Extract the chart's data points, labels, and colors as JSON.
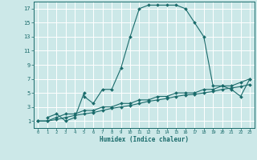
{
  "background_color": "#cce8e8",
  "grid_color": "#ffffff",
  "line_color": "#1a6b6b",
  "xlabel": "Humidex (Indice chaleur)",
  "xlim": [
    -0.5,
    23.5
  ],
  "ylim": [
    0,
    18
  ],
  "xticks": [
    0,
    1,
    2,
    3,
    4,
    5,
    6,
    7,
    8,
    9,
    10,
    11,
    12,
    13,
    14,
    15,
    16,
    17,
    18,
    19,
    20,
    21,
    22,
    23
  ],
  "yticks": [
    1,
    3,
    5,
    7,
    9,
    11,
    13,
    15,
    17
  ],
  "series1_x": [
    1,
    2,
    3,
    4,
    5,
    5,
    6,
    7,
    8,
    9,
    10,
    11,
    12,
    13,
    14,
    15,
    16,
    17,
    18,
    19,
    20,
    21,
    22,
    23
  ],
  "series1_y": [
    1.5,
    2.0,
    1.0,
    1.5,
    5.0,
    4.5,
    3.5,
    5.5,
    5.5,
    8.5,
    13.0,
    17.0,
    17.5,
    17.5,
    17.5,
    17.5,
    17.0,
    15.0,
    13.0,
    6.0,
    6.0,
    5.5,
    4.5,
    7.0
  ],
  "series2_x": [
    0,
    1,
    2,
    3,
    4,
    5,
    6,
    7,
    8,
    9,
    10,
    11,
    12,
    13,
    14,
    15,
    16,
    17,
    18,
    19,
    20,
    21,
    22,
    23
  ],
  "series2_y": [
    1.0,
    1.0,
    1.5,
    2.0,
    2.0,
    2.5,
    2.5,
    3.0,
    3.0,
    3.5,
    3.5,
    4.0,
    4.0,
    4.5,
    4.5,
    5.0,
    5.0,
    5.0,
    5.5,
    5.5,
    6.0,
    6.0,
    6.5,
    7.0
  ],
  "series3_x": [
    0,
    1,
    2,
    3,
    4,
    5,
    6,
    7,
    8,
    9,
    10,
    11,
    12,
    13,
    14,
    15,
    16,
    17,
    18,
    19,
    20,
    21,
    22,
    23
  ],
  "series3_y": [
    1.0,
    1.0,
    1.2,
    1.5,
    1.8,
    2.0,
    2.2,
    2.5,
    2.8,
    3.0,
    3.2,
    3.5,
    3.8,
    4.0,
    4.2,
    4.5,
    4.7,
    4.8,
    5.0,
    5.2,
    5.5,
    5.7,
    5.9,
    6.2
  ]
}
